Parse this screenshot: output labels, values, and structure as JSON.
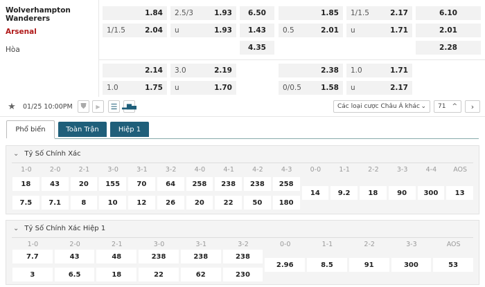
{
  "teams": {
    "home": "Wolverhampton Wanderers",
    "away": "Arsenal",
    "draw": "Hòa"
  },
  "full_time": {
    "handicap": [
      {
        "line": "",
        "odds": "1.84"
      },
      {
        "line": "1/1.5",
        "odds": "2.04"
      }
    ],
    "over_under": [
      {
        "line": "2.5/3",
        "odds": "1.93"
      },
      {
        "line": "u",
        "odds": "1.93"
      }
    ],
    "x12": [
      "6.50",
      "1.43",
      "4.35"
    ],
    "handicap_2": [
      {
        "line": "",
        "odds": "2.14"
      },
      {
        "line": "1.0",
        "odds": "1.75"
      }
    ],
    "over_under_2": [
      {
        "line": "3.0",
        "odds": "2.19"
      },
      {
        "line": "u",
        "odds": "1.70"
      }
    ]
  },
  "first_half": {
    "handicap": [
      {
        "line": "",
        "odds": "1.85"
      },
      {
        "line": "0.5",
        "odds": "2.01"
      }
    ],
    "over_under": [
      {
        "line": "1/1.5",
        "odds": "2.17"
      },
      {
        "line": "u",
        "odds": "1.71"
      }
    ],
    "x12": [
      "6.10",
      "2.01",
      "2.28"
    ],
    "handicap_2": [
      {
        "line": "",
        "odds": "2.38"
      },
      {
        "line": "0/0.5",
        "odds": "1.58"
      }
    ],
    "over_under_2": [
      {
        "line": "1.0",
        "odds": "1.71"
      },
      {
        "line": "u",
        "odds": "2.17"
      }
    ]
  },
  "toolbar": {
    "datetime": "01/25 10:00PM",
    "dropdown": "Các loại cược Châu Á khác",
    "count": "71"
  },
  "tabs": [
    "Phổ biến",
    "Toàn Trận",
    "Hiệp 1"
  ],
  "active_tab": "Phổ biến",
  "correct_score": {
    "title": "Tỷ Số Chính Xác",
    "pairs": [
      [
        "1-0",
        "18",
        "7.5"
      ],
      [
        "2-0",
        "43",
        "7.1"
      ],
      [
        "2-1",
        "20",
        "8"
      ],
      [
        "3-0",
        "155",
        "10"
      ],
      [
        "3-1",
        "70",
        "12"
      ],
      [
        "3-2",
        "64",
        "26"
      ],
      [
        "4-0",
        "258",
        "20"
      ],
      [
        "4-1",
        "238",
        "22"
      ],
      [
        "4-2",
        "238",
        "50"
      ],
      [
        "4-3",
        "258",
        "180"
      ]
    ],
    "singles": [
      [
        "0-0",
        "14"
      ],
      [
        "1-1",
        "9.2"
      ],
      [
        "2-2",
        "18"
      ],
      [
        "3-3",
        "90"
      ],
      [
        "4-4",
        "300"
      ],
      [
        "AOS",
        "13"
      ]
    ]
  },
  "correct_score_h1": {
    "title": "Tỷ Số Chính Xác Hiệp 1",
    "pairs": [
      [
        "1-0",
        "7.7",
        "3"
      ],
      [
        "2-0",
        "43",
        "6.5"
      ],
      [
        "2-1",
        "48",
        "18"
      ],
      [
        "3-0",
        "238",
        "22"
      ],
      [
        "3-1",
        "238",
        "62"
      ],
      [
        "3-2",
        "238",
        "230"
      ]
    ],
    "singles": [
      [
        "0-0",
        "2.96"
      ],
      [
        "1-1",
        "8.5"
      ],
      [
        "2-2",
        "91"
      ],
      [
        "3-3",
        "300"
      ],
      [
        "AOS",
        "53"
      ]
    ]
  }
}
